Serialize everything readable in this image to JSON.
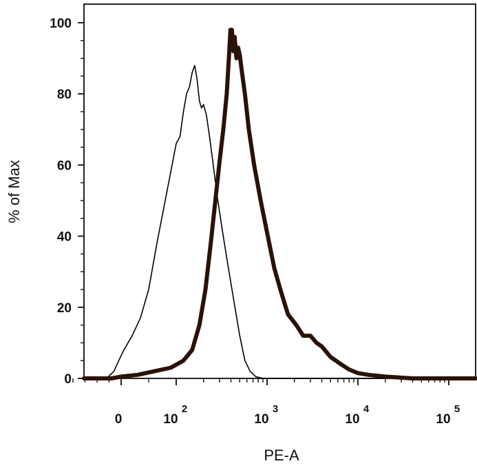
{
  "chart_data": {
    "type": "line",
    "xlabel": "PE-A",
    "ylabel": "% of Max",
    "x_scale": "biexponential",
    "ylim": [
      0,
      100
    ],
    "xlim": [
      -250,
      200000
    ],
    "grid": false,
    "y_ticks": [
      {
        "value": 0,
        "label": "0"
      },
      {
        "value": 20,
        "label": "20"
      },
      {
        "value": 40,
        "label": "40"
      },
      {
        "value": 60,
        "label": "60"
      },
      {
        "value": 80,
        "label": "80"
      },
      {
        "value": 100,
        "label": "100"
      }
    ],
    "x_ticks": [
      {
        "value": 0,
        "base": "0",
        "exp": ""
      },
      {
        "value": 100,
        "base": "10",
        "exp": "2"
      },
      {
        "value": 1000,
        "base": "10",
        "exp": "3"
      },
      {
        "value": 10000,
        "base": "10",
        "exp": "4"
      },
      {
        "value": 100000,
        "base": "10",
        "exp": "5"
      }
    ],
    "series": [
      {
        "color": "#000000",
        "style": "thin",
        "points": [
          [
            -250,
            0
          ],
          [
            -60,
            0
          ],
          [
            -30,
            2
          ],
          [
            -10,
            5
          ],
          [
            5,
            8
          ],
          [
            20,
            12
          ],
          [
            35,
            17
          ],
          [
            50,
            25
          ],
          [
            65,
            38
          ],
          [
            80,
            50
          ],
          [
            90,
            58
          ],
          [
            100,
            66
          ],
          [
            110,
            68
          ],
          [
            120,
            75
          ],
          [
            130,
            80
          ],
          [
            140,
            82
          ],
          [
            150,
            86
          ],
          [
            160,
            88
          ],
          [
            170,
            84
          ],
          [
            180,
            78
          ],
          [
            190,
            76
          ],
          [
            200,
            77
          ],
          [
            215,
            74
          ],
          [
            230,
            69
          ],
          [
            250,
            62
          ],
          [
            280,
            52
          ],
          [
            320,
            42
          ],
          [
            370,
            32
          ],
          [
            430,
            22
          ],
          [
            500,
            12
          ],
          [
            570,
            5
          ],
          [
            650,
            2
          ],
          [
            750,
            0.5
          ],
          [
            900,
            0
          ],
          [
            200000,
            0
          ]
        ]
      },
      {
        "color": "#2a1208",
        "style": "thick",
        "points": [
          [
            -250,
            0
          ],
          [
            -40,
            0
          ],
          [
            0,
            0.5
          ],
          [
            30,
            1
          ],
          [
            60,
            2
          ],
          [
            90,
            3
          ],
          [
            120,
            5
          ],
          [
            150,
            8
          ],
          [
            180,
            15
          ],
          [
            210,
            25
          ],
          [
            240,
            38
          ],
          [
            270,
            50
          ],
          [
            300,
            61
          ],
          [
            330,
            70
          ],
          [
            360,
            80
          ],
          [
            380,
            90
          ],
          [
            395,
            98
          ],
          [
            410,
            98
          ],
          [
            425,
            92
          ],
          [
            440,
            96
          ],
          [
            460,
            90
          ],
          [
            480,
            93
          ],
          [
            500,
            91
          ],
          [
            530,
            86
          ],
          [
            570,
            80
          ],
          [
            630,
            70
          ],
          [
            720,
            60
          ],
          [
            850,
            50
          ],
          [
            1000,
            41
          ],
          [
            1200,
            31
          ],
          [
            1400,
            25
          ],
          [
            1700,
            18
          ],
          [
            2100,
            15
          ],
          [
            2500,
            12
          ],
          [
            3000,
            12
          ],
          [
            3500,
            10
          ],
          [
            4000,
            9
          ],
          [
            5000,
            6
          ],
          [
            6500,
            4
          ],
          [
            8000,
            2.5
          ],
          [
            10000,
            1.5
          ],
          [
            13000,
            1
          ],
          [
            20000,
            0.5
          ],
          [
            40000,
            0
          ],
          [
            200000,
            0
          ]
        ]
      }
    ]
  }
}
